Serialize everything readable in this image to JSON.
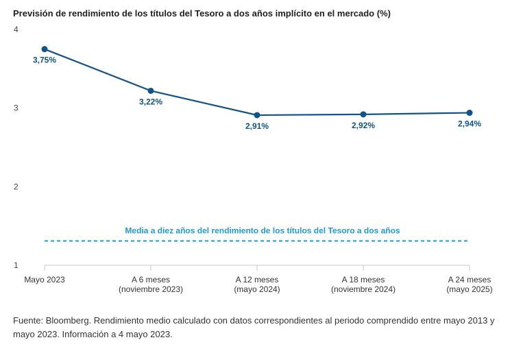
{
  "chart_data": {
    "type": "line",
    "title": "Previsión de rendimiento de los títulos del Tesoro a dos años implícito en el mercado (%)",
    "categories": [
      [
        "Mayo 2023"
      ],
      [
        "A 6 meses",
        "(noviembre 2023)"
      ],
      [
        "A 12 meses",
        "(mayo 2024)"
      ],
      [
        "A 18 meses",
        "(noviembre 2024)"
      ],
      [
        "A 24 meses",
        "(mayo 2025)"
      ]
    ],
    "values": [
      3.75,
      3.22,
      2.91,
      2.92,
      2.94
    ],
    "value_labels": [
      "3,75%",
      "3,22%",
      "2,91%",
      "2,92%",
      "2,94%"
    ],
    "yticks": [
      1,
      2,
      3,
      4
    ],
    "ylim": [
      1,
      4
    ],
    "reference_line": {
      "label": "Media a diez años del rendimiento de los títulos del Tesoro a dos años",
      "value": 1.31
    },
    "colors": {
      "line": "#0f5389",
      "reference": "#1e9ad6",
      "axis": "#c9c9c9"
    }
  },
  "source_note": "Fuente: Bloomberg. Rendimiento medio calculado con datos correspondientes al periodo comprendido entre mayo 2013 y mayo 2023. Información a 4 mayo 2023."
}
